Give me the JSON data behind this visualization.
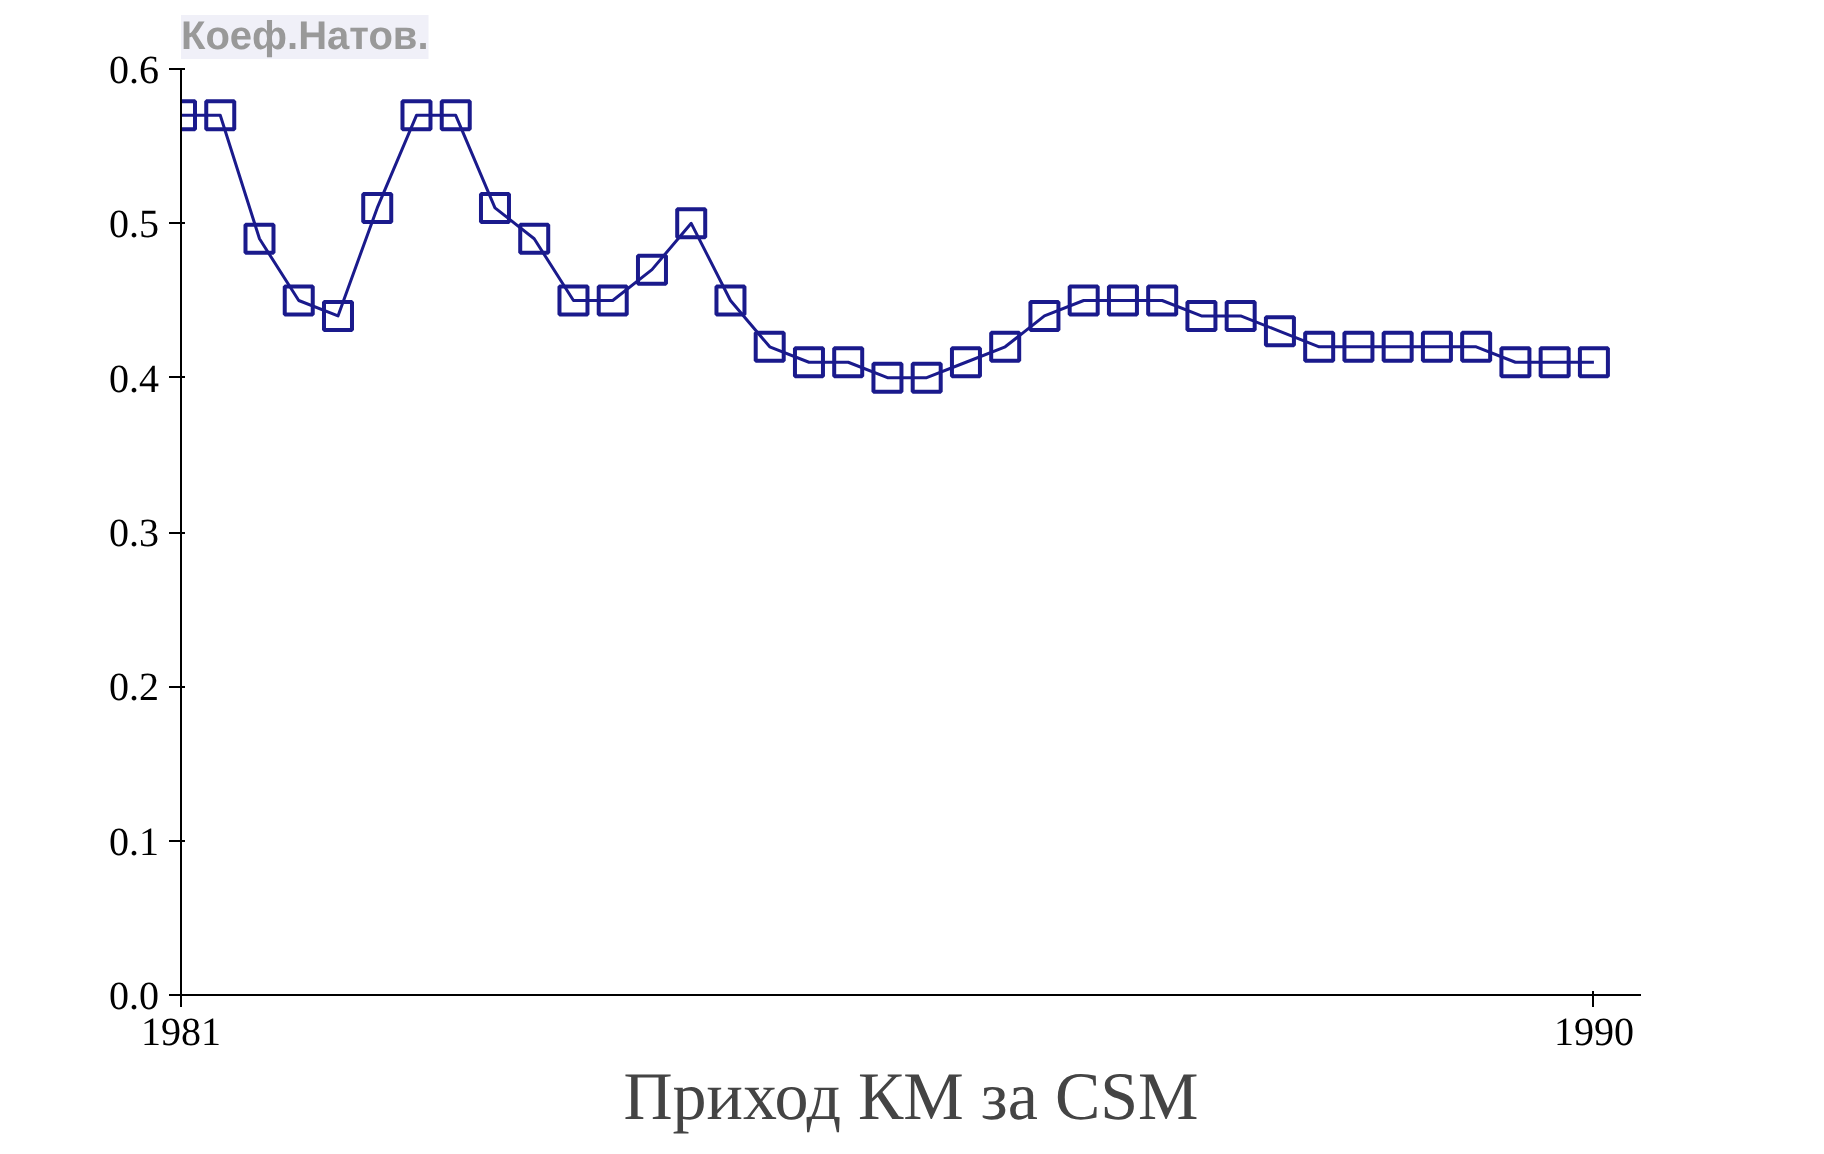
{
  "chart_data": {
    "type": "line",
    "title": "Коеф.Натов.",
    "xlabel": "Приход КМ за CSM",
    "marker": "square",
    "grid": false,
    "x": [
      1981,
      1981.25,
      1981.5,
      1981.75,
      1982,
      1982.25,
      1982.5,
      1982.75,
      1983,
      1983.25,
      1983.5,
      1983.75,
      1984,
      1984.25,
      1984.5,
      1984.75,
      1985,
      1985.25,
      1985.5,
      1985.75,
      1986,
      1986.25,
      1986.5,
      1986.75,
      1987,
      1987.25,
      1987.5,
      1987.75,
      1988,
      1988.25,
      1988.5,
      1988.75,
      1989,
      1989.25,
      1989.5,
      1989.75,
      1990
    ],
    "series": [
      {
        "color": "#1a1a8c",
        "values": [
          0.57,
          0.57,
          0.49,
          0.45,
          0.44,
          0.51,
          0.57,
          0.57,
          0.51,
          0.49,
          0.45,
          0.45,
          0.47,
          0.5,
          0.45,
          0.42,
          0.41,
          0.41,
          0.4,
          0.4,
          0.41,
          0.42,
          0.44,
          0.45,
          0.45,
          0.45,
          0.44,
          0.44,
          0.43,
          0.42,
          0.42,
          0.42,
          0.42,
          0.42,
          0.41,
          0.41,
          0.41
        ]
      }
    ],
    "xlim": [
      1981,
      1990.3
    ],
    "xticks": [
      1981,
      1990
    ],
    "ylim": [
      0,
      0.6
    ],
    "yticks": [
      {
        "value": 0,
        "label": "0.0"
      },
      0.1,
      0.2,
      0.3,
      0.4,
      0.5,
      0.6
    ]
  }
}
